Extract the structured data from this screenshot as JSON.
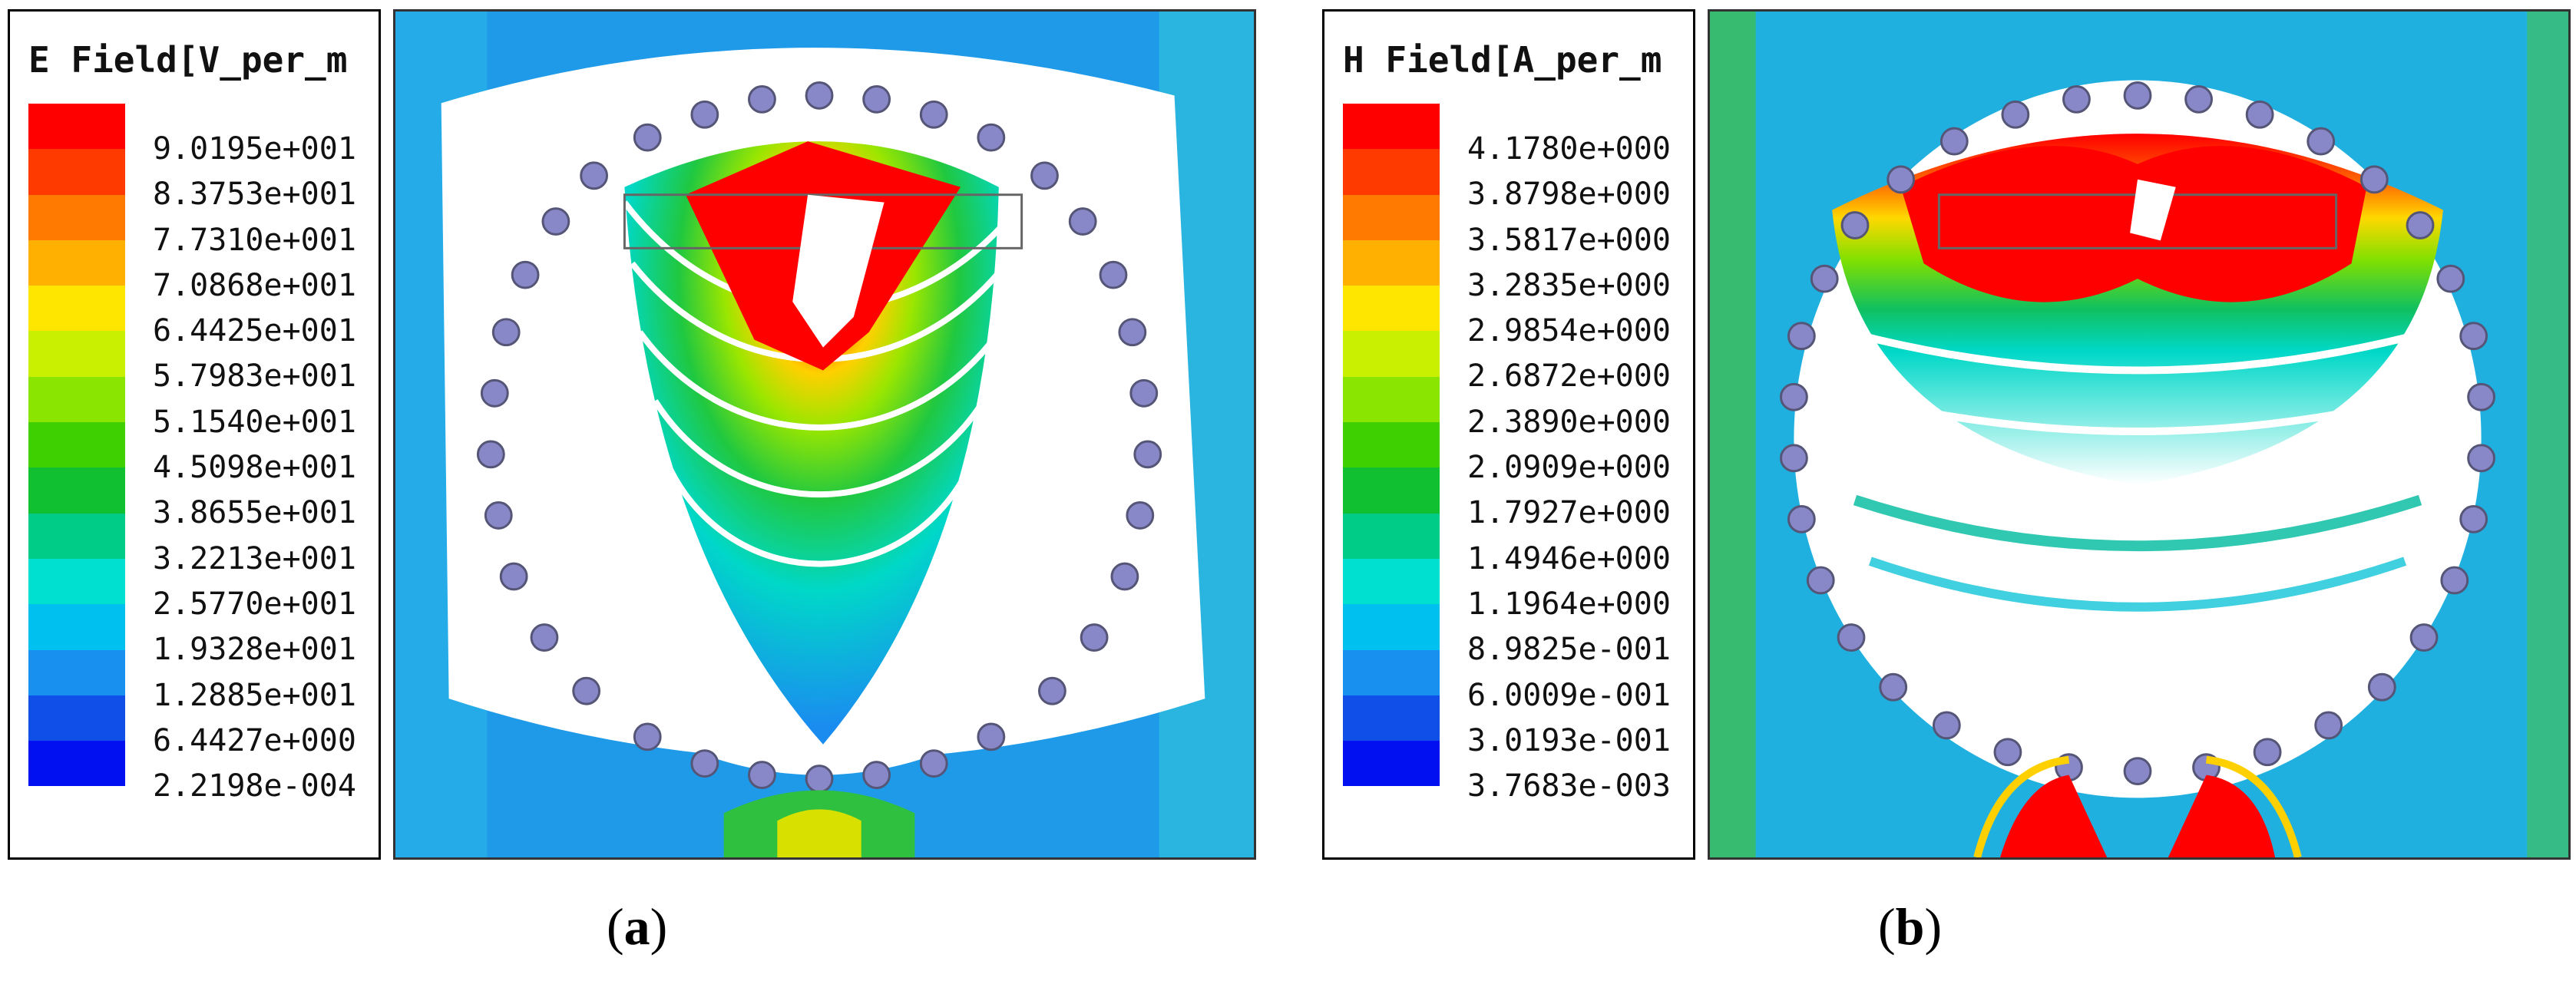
{
  "panels": [
    {
      "legend_title": "E Field[V_per_m",
      "labels": [
        "9.0195e+001",
        "8.3753e+001",
        "7.7310e+001",
        "7.0868e+001",
        "6.4425e+001",
        "5.7983e+001",
        "5.1540e+001",
        "4.5098e+001",
        "3.8655e+001",
        "3.2213e+001",
        "2.5770e+001",
        "1.9328e+001",
        "1.2885e+001",
        "6.4427e+000",
        "2.2198e-004"
      ],
      "caption": {
        "open": "(",
        "letter": "a",
        "close": ")"
      }
    },
    {
      "legend_title": "H Field[A_per_m",
      "labels": [
        "4.1780e+000",
        "3.8798e+000",
        "3.5817e+000",
        "3.2835e+000",
        "2.9854e+000",
        "2.6872e+000",
        "2.3890e+000",
        "2.0909e+000",
        "1.7927e+000",
        "1.4946e+000",
        "1.1964e+000",
        "8.9825e-001",
        "6.0009e-001",
        "3.0193e-001",
        "3.7683e-003"
      ],
      "caption": {
        "open": "(",
        "letter": "b",
        "close": ")"
      }
    }
  ],
  "colormap": [
    "#ff0000",
    "#ff3a00",
    "#ff7a00",
    "#ffb000",
    "#ffe600",
    "#c8f000",
    "#8ae600",
    "#3ed000",
    "#10c030",
    "#00cc88",
    "#00e0d0",
    "#00c0f0",
    "#1890f0",
    "#1050e8",
    "#0010f0"
  ]
}
